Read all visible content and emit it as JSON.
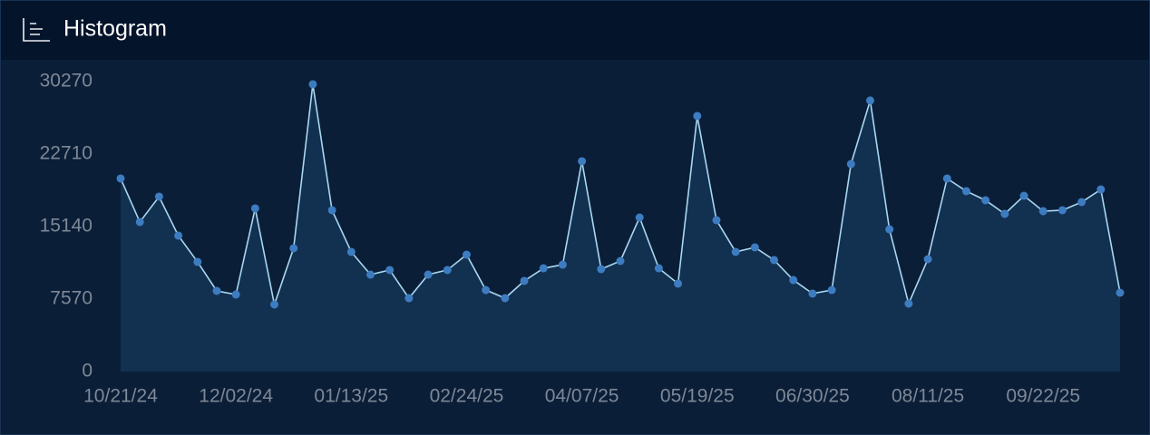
{
  "chart_data": {
    "type": "area",
    "title": "Histogram",
    "categories": [
      "10/21/24",
      null,
      null,
      null,
      null,
      null,
      "12/02/24",
      null,
      null,
      null,
      null,
      null,
      "01/13/25",
      null,
      null,
      null,
      null,
      null,
      "02/24/25",
      null,
      null,
      null,
      null,
      null,
      "04/07/25",
      null,
      null,
      null,
      null,
      null,
      "05/19/25",
      null,
      null,
      null,
      null,
      null,
      "06/30/25",
      null,
      null,
      null,
      null,
      null,
      "08/11/25",
      null,
      null,
      null,
      null,
      null,
      "09/22/25",
      null,
      null,
      null,
      null
    ],
    "values": [
      20150,
      15610,
      18260,
      14190,
      11450,
      8420,
      8040,
      17030,
      7000,
      12870,
      29990,
      16840,
      12490,
      10120,
      10600,
      7660,
      10120,
      10600,
      12200,
      8510,
      7660,
      9460,
      10780,
      11160,
      21950,
      10690,
      11540,
      16080,
      10780,
      9180,
      26680,
      15800,
      12490,
      12960,
      11640,
      9550,
      8140,
      8510,
      21660,
      28290,
      14850,
      7090,
      11730,
      20150,
      18830,
      17880,
      16460,
      18350,
      16740,
      16840,
      17690,
      19010,
      8230
    ],
    "ylim": [
      0,
      30270
    ],
    "yticks": [
      0,
      7570,
      15140,
      22710,
      30270
    ],
    "color": "#a8d8f0",
    "marker_color": "#3d7cc0",
    "fill_color": "#12304f"
  }
}
